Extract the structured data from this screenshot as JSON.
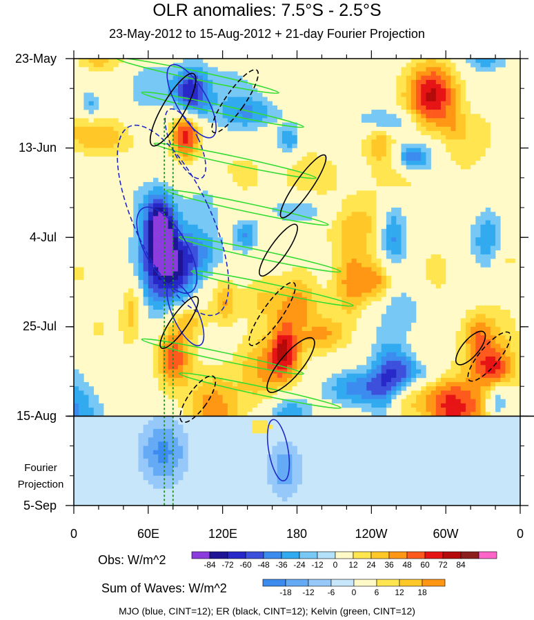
{
  "header": {
    "title": "OLR anomalies: 7.5°S - 2.5°S",
    "subtitle": "23-May-2012 to 15-Aug-2012 + 21-day Fourier Projection"
  },
  "chart_data": {
    "type": "heatmap",
    "title": "OLR anomalies: 7.5°S - 2.5°S",
    "subtitle": "23-May-2012 to 15-Aug-2012 + 21-day Fourier Projection",
    "x_axis": {
      "tick_labels": [
        "0",
        "60E",
        "120E",
        "180",
        "120W",
        "60W",
        "0"
      ],
      "range_deg_east": [
        0,
        360
      ]
    },
    "y_axis": {
      "tick_labels": [
        "23-May",
        "13-Jun",
        "4-Jul",
        "25-Jul",
        "15-Aug",
        "5-Sep"
      ],
      "range": [
        "2012-05-23",
        "2012-09-05"
      ],
      "direction": "time increases downward"
    },
    "forecast_divider": "2012-08-15",
    "projection_label": [
      "Fourier",
      "Projection"
    ],
    "colorbars": [
      {
        "title": "Obs: W/m^2",
        "levels": [
          -84,
          -72,
          -60,
          -48,
          -36,
          -24,
          -12,
          0,
          12,
          24,
          36,
          48,
          60,
          72,
          84
        ],
        "tick_labels": [
          "-84",
          "-72",
          "-60",
          "-48",
          "-36",
          "-24",
          "-12",
          "0",
          "12",
          "24",
          "36",
          "48",
          "60",
          "72",
          "84"
        ],
        "colors": [
          "#8c3cdc",
          "#1e1496",
          "#2828c8",
          "#3c50dc",
          "#3c8cf0",
          "#32aaf0",
          "#78c8f5",
          "#b4e1fa",
          "#fffac8",
          "#ffe650",
          "#ffc828",
          "#ff9614",
          "#ff5a1e",
          "#e61414",
          "#b40a0a",
          "#8c1e1e",
          "#ff64c8"
        ]
      },
      {
        "title": "Sum of Waves: W/m^2",
        "levels": [
          -18,
          -12,
          -6,
          0,
          6,
          12,
          18
        ],
        "tick_labels": [
          "-18",
          "-12",
          "-6",
          "0",
          "6",
          "12",
          "18"
        ],
        "colors": [
          "#3c8cf0",
          "#64aaf5",
          "#96c8fa",
          "#c8e6fa",
          "#fffac8",
          "#ffe650",
          "#ffc828",
          "#ff9614"
        ]
      }
    ],
    "contours": {
      "legend": "MJO (blue, CINT=12); ER (black, CINT=12); Kelvin (green, CINT=12)",
      "series": [
        {
          "name": "MJO",
          "color": "#1e28c8",
          "cint": 12
        },
        {
          "name": "ER",
          "color": "#000000",
          "cint": 12
        },
        {
          "name": "Kelvin",
          "color": "#32dc32",
          "cint": 12
        }
      ]
    },
    "reference_lines": {
      "color": "#1e8c1e",
      "style": "dotted",
      "count": 2
    }
  }
}
